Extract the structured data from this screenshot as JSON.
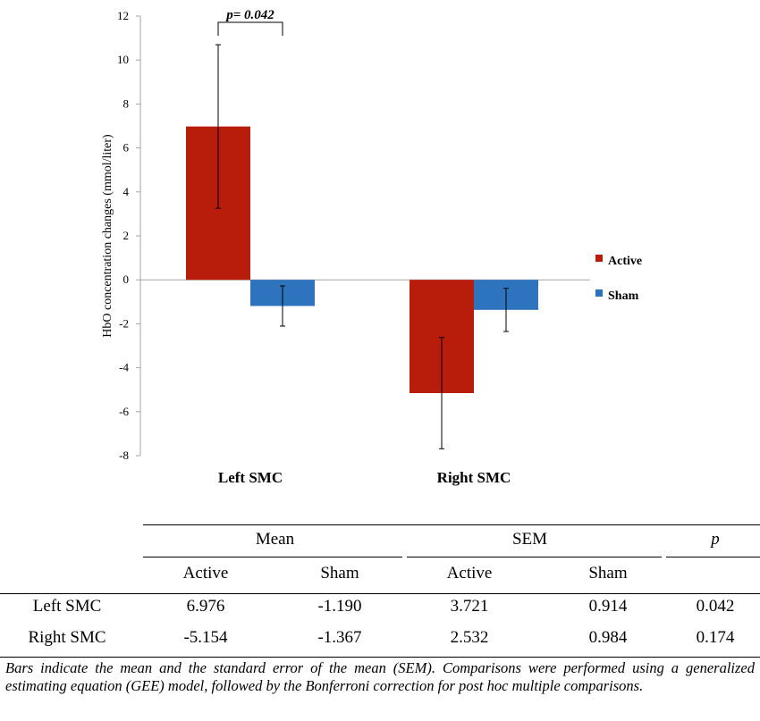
{
  "chart_data": {
    "type": "bar",
    "ylabel": "HbO concentration changes (mmol/liter)",
    "ylim": [
      -8,
      12
    ],
    "yticks": [
      12,
      10,
      8,
      6,
      4,
      2,
      0,
      -2,
      -4,
      -6,
      -8
    ],
    "categories": [
      "Left SMC",
      "Right SMC"
    ],
    "series": [
      {
        "name": "Active",
        "color": "#b81d0c",
        "values": [
          6.976,
          -5.154
        ],
        "errors": [
          3.721,
          2.532
        ]
      },
      {
        "name": "Sham",
        "color": "#2e73be",
        "values": [
          -1.19,
          -1.367
        ],
        "errors": [
          0.914,
          0.984
        ]
      }
    ],
    "annotation": {
      "text": "p= 0.042",
      "category": "Left SMC"
    },
    "legend_position": "right"
  },
  "table": {
    "group_headers": [
      "Mean",
      "SEM",
      "p"
    ],
    "sub_headers": [
      "Active",
      "Sham",
      "Active",
      "Sham"
    ],
    "rows": [
      {
        "label": "Left SMC",
        "values": [
          "6.976",
          "-1.190",
          "3.721",
          "0.914",
          "0.042"
        ]
      },
      {
        "label": "Right SMC",
        "values": [
          "-5.154",
          "-1.367",
          "2.532",
          "0.984",
          "0.174"
        ]
      }
    ]
  },
  "caption": "Bars indicate the mean and the standard error of the mean (SEM). Comparisons were performed using a generalized estimating equation (GEE) model, followed by the Bonferroni correction for post hoc multiple comparisons."
}
